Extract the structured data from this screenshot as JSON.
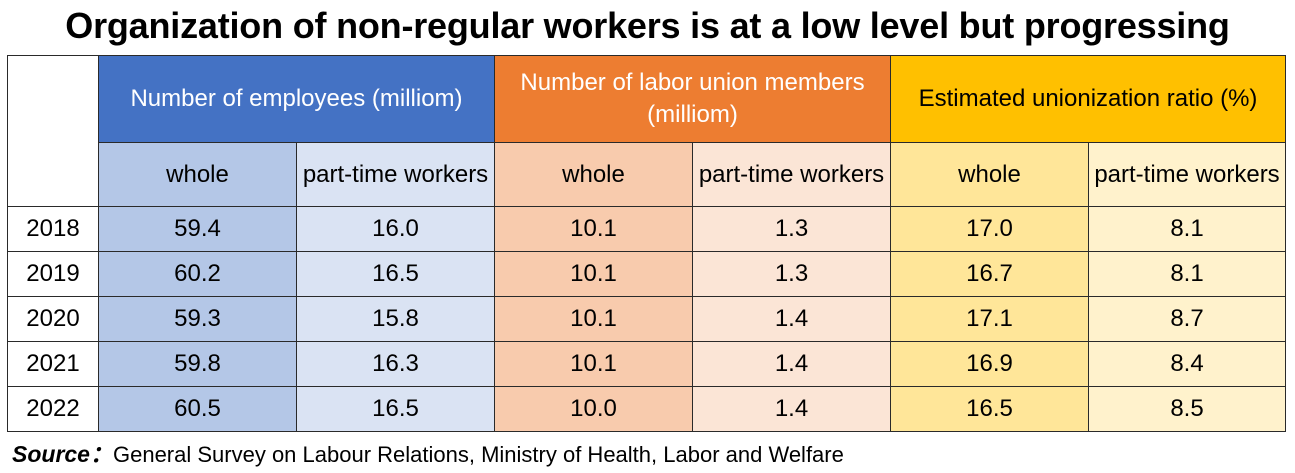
{
  "title": "Organization of non-regular workers is at a low level but progressing",
  "source": {
    "label": "Source",
    "separator": "：",
    "text": "General Survey on Labour Relations, Ministry of Health, Labor and Welfare"
  },
  "chart_data": {
    "type": "table",
    "groups": [
      {
        "label": "Number of employees (milliom)",
        "color": "#4472c4"
      },
      {
        "label": "Number of labor union members (milliom)",
        "color": "#ed7d31"
      },
      {
        "label": "Estimated unionization ratio (%)",
        "color": "#ffc000"
      }
    ],
    "subheaders": [
      "whole",
      "part-time workers",
      "whole",
      "part-time workers",
      "whole",
      "part-time workers"
    ],
    "rows": [
      {
        "year": "2018",
        "values": [
          "59.4",
          "16.0",
          "10.1",
          "1.3",
          "17.0",
          "8.1"
        ]
      },
      {
        "year": "2019",
        "values": [
          "60.2",
          "16.5",
          "10.1",
          "1.3",
          "16.7",
          "8.1"
        ]
      },
      {
        "year": "2020",
        "values": [
          "59.3",
          "15.8",
          "10.1",
          "1.4",
          "17.1",
          "8.7"
        ]
      },
      {
        "year": "2021",
        "values": [
          "59.8",
          "16.3",
          "10.1",
          "1.4",
          "16.9",
          "8.4"
        ]
      },
      {
        "year": "2022",
        "values": [
          "60.5",
          "16.5",
          "10.0",
          "1.4",
          "16.5",
          "8.5"
        ]
      }
    ]
  }
}
